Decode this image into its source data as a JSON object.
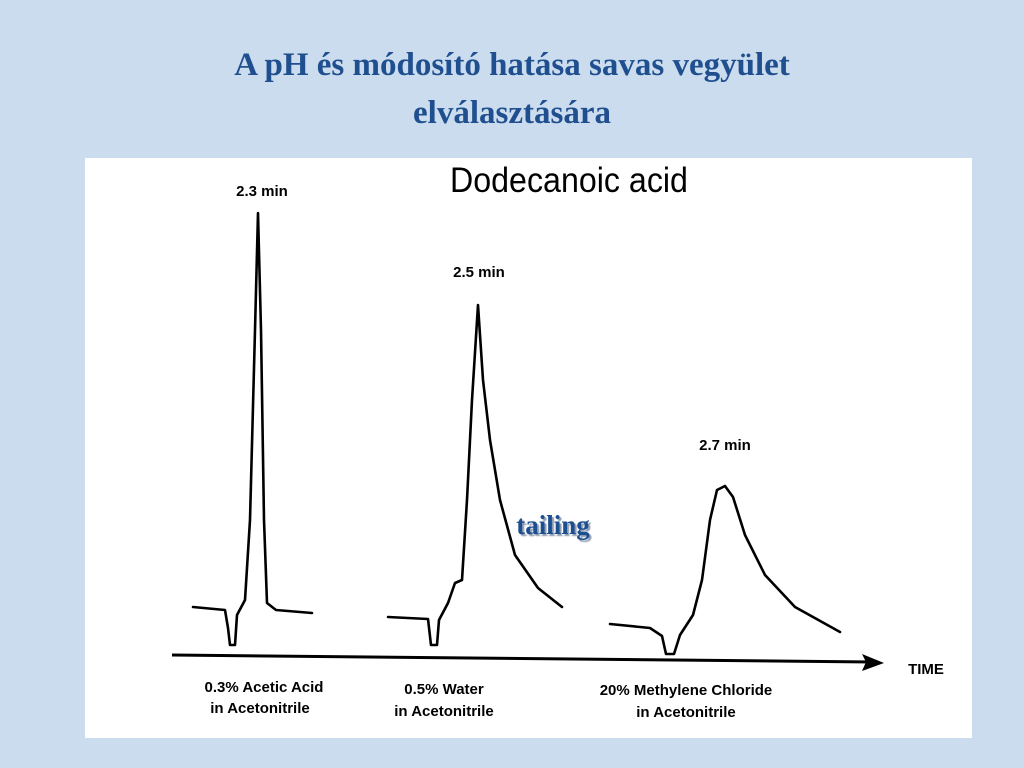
{
  "slide": {
    "title": [
      "A pH és módosító hatása savas vegyület",
      "elválasztására"
    ],
    "figure": {
      "title": "Dodecanoic acid",
      "peaks": [
        "2.3 min",
        "2.5 min",
        "2.7 min"
      ],
      "conditions": [
        [
          "0.3% Acetic Acid",
          "in Acetonitrile"
        ],
        [
          "0.5% Water",
          "in Acetonitrile"
        ],
        [
          "20% Methylene Chloride",
          "in Acetonitrile"
        ]
      ],
      "axis_label": "TIME",
      "annotation": "tailing"
    }
  }
}
